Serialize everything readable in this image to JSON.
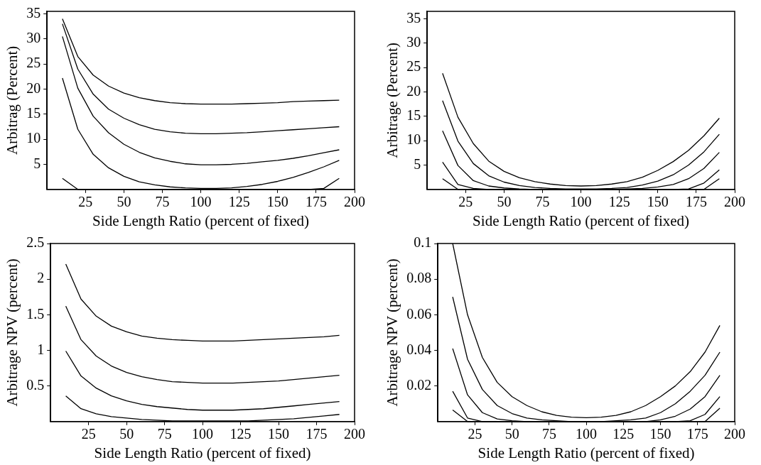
{
  "chart_data": [
    {
      "type": "line",
      "xlabel": "Side Length Ratio (percent of fixed)",
      "ylabel": "Arbitrag (Percent)",
      "x": [
        10,
        20,
        30,
        40,
        50,
        60,
        70,
        80,
        90,
        100,
        110,
        120,
        130,
        140,
        150,
        160,
        170,
        180,
        190
      ],
      "xlim": [
        0,
        200
      ],
      "xticks": [
        25,
        50,
        75,
        100,
        125,
        150,
        175,
        200
      ],
      "ylim": [
        0,
        35.5
      ],
      "yticks": [
        5,
        10,
        15,
        20,
        25,
        30,
        35
      ],
      "grid": false,
      "legend": false,
      "marker": "none",
      "line_style": "solid",
      "series": [
        {
          "color": "#000000",
          "values": [
            34,
            26.5,
            22.8,
            20.6,
            19.2,
            18.3,
            17.7,
            17.3,
            17.1,
            17.0,
            17.0,
            17.0,
            17.1,
            17.2,
            17.3,
            17.5,
            17.6,
            17.7,
            17.8
          ]
        },
        {
          "color": "#000000",
          "values": [
            33,
            24,
            19,
            16,
            14.2,
            12.9,
            12.0,
            11.5,
            11.2,
            11.1,
            11.1,
            11.2,
            11.3,
            11.5,
            11.7,
            11.9,
            12.1,
            12.3,
            12.5
          ]
        },
        {
          "color": "#000000",
          "values": [
            30.5,
            20.2,
            14.6,
            11.3,
            9.0,
            7.4,
            6.3,
            5.6,
            5.1,
            4.9,
            4.9,
            5.0,
            5.2,
            5.5,
            5.8,
            6.2,
            6.7,
            7.3,
            7.9
          ]
        },
        {
          "color": "#000000",
          "values": [
            22.2,
            12,
            7,
            4.3,
            2.6,
            1.5,
            0.9,
            0.5,
            0.3,
            0.2,
            0.2,
            0.3,
            0.6,
            1.0,
            1.6,
            2.4,
            3.4,
            4.5,
            5.8
          ]
        },
        {
          "color": "#000000",
          "values": [
            2.2,
            0,
            0,
            0,
            0,
            0,
            0,
            0,
            0,
            0,
            0,
            0,
            0,
            0,
            0,
            0,
            0,
            0.2,
            2.2
          ]
        }
      ]
    },
    {
      "type": "line",
      "xlabel": "Side Length Ratio (percent of fixed)",
      "ylabel": "Arbitrage (Percent)",
      "x": [
        10,
        20,
        30,
        40,
        50,
        60,
        70,
        80,
        90,
        100,
        110,
        120,
        130,
        140,
        150,
        160,
        170,
        180,
        190
      ],
      "xlim": [
        0,
        200
      ],
      "xticks": [
        25,
        50,
        75,
        100,
        125,
        150,
        175,
        200
      ],
      "ylim": [
        0,
        36.5
      ],
      "yticks": [
        5,
        10,
        15,
        20,
        25,
        30,
        35
      ],
      "grid": false,
      "legend": false,
      "marker": "none",
      "line_style": "solid",
      "series": [
        {
          "color": "#000000",
          "values": [
            23.8,
            14.8,
            9.4,
            5.8,
            3.7,
            2.4,
            1.6,
            1.1,
            0.8,
            0.7,
            0.8,
            1.1,
            1.6,
            2.5,
            3.9,
            5.7,
            8.0,
            11,
            14.6
          ]
        },
        {
          "color": "#000000",
          "values": [
            18.2,
            9.9,
            5.3,
            2.8,
            1.5,
            0.8,
            0.4,
            0.2,
            0.1,
            0.1,
            0.1,
            0.2,
            0.4,
            0.9,
            1.7,
            3.0,
            5.0,
            7.7,
            11.3
          ]
        },
        {
          "color": "#000000",
          "values": [
            12,
            4.9,
            1.8,
            0.7,
            0.3,
            0.1,
            0,
            0,
            0,
            0,
            0,
            0,
            0.1,
            0.2,
            0.5,
            1.0,
            2.2,
            4.3,
            7.6
          ]
        },
        {
          "color": "#000000",
          "values": [
            5.6,
            1.0,
            0.2,
            0,
            0,
            0,
            0,
            0,
            0,
            0,
            0,
            0,
            0,
            0,
            0,
            0,
            0.1,
            1.3,
            4.0
          ]
        },
        {
          "color": "#000000",
          "values": [
            2.2,
            0,
            0,
            0,
            0,
            0,
            0,
            0,
            0,
            0,
            0,
            0,
            0,
            0,
            0,
            0,
            0,
            0,
            2.2
          ]
        }
      ]
    },
    {
      "type": "line",
      "xlabel": "Side Length Ratio (percent of fixed)",
      "ylabel": "Arbitrage NPV (percent)",
      "x": [
        10,
        20,
        30,
        40,
        50,
        60,
        70,
        80,
        90,
        100,
        110,
        120,
        130,
        140,
        150,
        160,
        170,
        180,
        190
      ],
      "xlim": [
        0,
        200
      ],
      "xticks": [
        25,
        50,
        75,
        100,
        125,
        150,
        175,
        200
      ],
      "ylim": [
        0,
        2.5
      ],
      "yticks": [
        0.5,
        1,
        1.5,
        2,
        2.5
      ],
      "grid": false,
      "legend": false,
      "marker": "none",
      "line_style": "solid",
      "series": [
        {
          "color": "#000000",
          "values": [
            2.21,
            1.72,
            1.48,
            1.34,
            1.26,
            1.2,
            1.17,
            1.15,
            1.14,
            1.13,
            1.13,
            1.13,
            1.14,
            1.15,
            1.16,
            1.17,
            1.18,
            1.19,
            1.21
          ]
        },
        {
          "color": "#000000",
          "values": [
            1.62,
            1.15,
            0.92,
            0.78,
            0.69,
            0.63,
            0.59,
            0.56,
            0.55,
            0.54,
            0.54,
            0.54,
            0.55,
            0.56,
            0.57,
            0.59,
            0.61,
            0.63,
            0.65
          ]
        },
        {
          "color": "#000000",
          "values": [
            0.99,
            0.64,
            0.47,
            0.36,
            0.29,
            0.24,
            0.21,
            0.19,
            0.17,
            0.16,
            0.16,
            0.16,
            0.17,
            0.18,
            0.2,
            0.22,
            0.24,
            0.26,
            0.28
          ]
        },
        {
          "color": "#000000",
          "values": [
            0.36,
            0.18,
            0.11,
            0.07,
            0.05,
            0.03,
            0.02,
            0.01,
            0.01,
            0.01,
            0.01,
            0.01,
            0.01,
            0.02,
            0.03,
            0.04,
            0.06,
            0.08,
            0.1
          ]
        }
      ]
    },
    {
      "type": "line",
      "xlabel": "Side Length Ratio (percent of fixed)",
      "ylabel": "Arbitrage NPV (percent)",
      "x": [
        10,
        20,
        30,
        40,
        50,
        60,
        70,
        80,
        90,
        100,
        110,
        120,
        130,
        140,
        150,
        160,
        170,
        180,
        190
      ],
      "xlim": [
        0,
        200
      ],
      "xticks": [
        25,
        50,
        75,
        100,
        125,
        150,
        175,
        200
      ],
      "ylim": [
        0,
        0.1
      ],
      "yticks": [
        0.02,
        0.04,
        0.06,
        0.08,
        0.1
      ],
      "grid": false,
      "legend": false,
      "marker": "none",
      "line_style": "solid",
      "series": [
        {
          "color": "#000000",
          "values": [
            0.1,
            0.06,
            0.036,
            0.022,
            0.014,
            0.009,
            0.0055,
            0.0035,
            0.0025,
            0.0022,
            0.0025,
            0.0035,
            0.0055,
            0.009,
            0.014,
            0.02,
            0.028,
            0.039,
            0.054
          ]
        },
        {
          "color": "#000000",
          "values": [
            0.07,
            0.035,
            0.018,
            0.009,
            0.0045,
            0.002,
            0.001,
            0.0005,
            0,
            0,
            0,
            0.0005,
            0.001,
            0.002,
            0.005,
            0.01,
            0.017,
            0.026,
            0.039
          ]
        },
        {
          "color": "#000000",
          "values": [
            0.041,
            0.015,
            0.005,
            0.0015,
            0.0005,
            0,
            0,
            0,
            0,
            0,
            0,
            0,
            0,
            0,
            0.001,
            0.003,
            0.007,
            0.014,
            0.026
          ]
        },
        {
          "color": "#000000",
          "values": [
            0.017,
            0.002,
            0,
            0,
            0,
            0,
            0,
            0,
            0,
            0,
            0,
            0,
            0,
            0,
            0,
            0,
            0.0005,
            0.004,
            0.014
          ]
        },
        {
          "color": "#000000",
          "values": [
            0.0065,
            0,
            0,
            0,
            0,
            0,
            0,
            0,
            0,
            0,
            0,
            0,
            0,
            0,
            0,
            0,
            0,
            0,
            0.0075
          ]
        }
      ]
    }
  ]
}
